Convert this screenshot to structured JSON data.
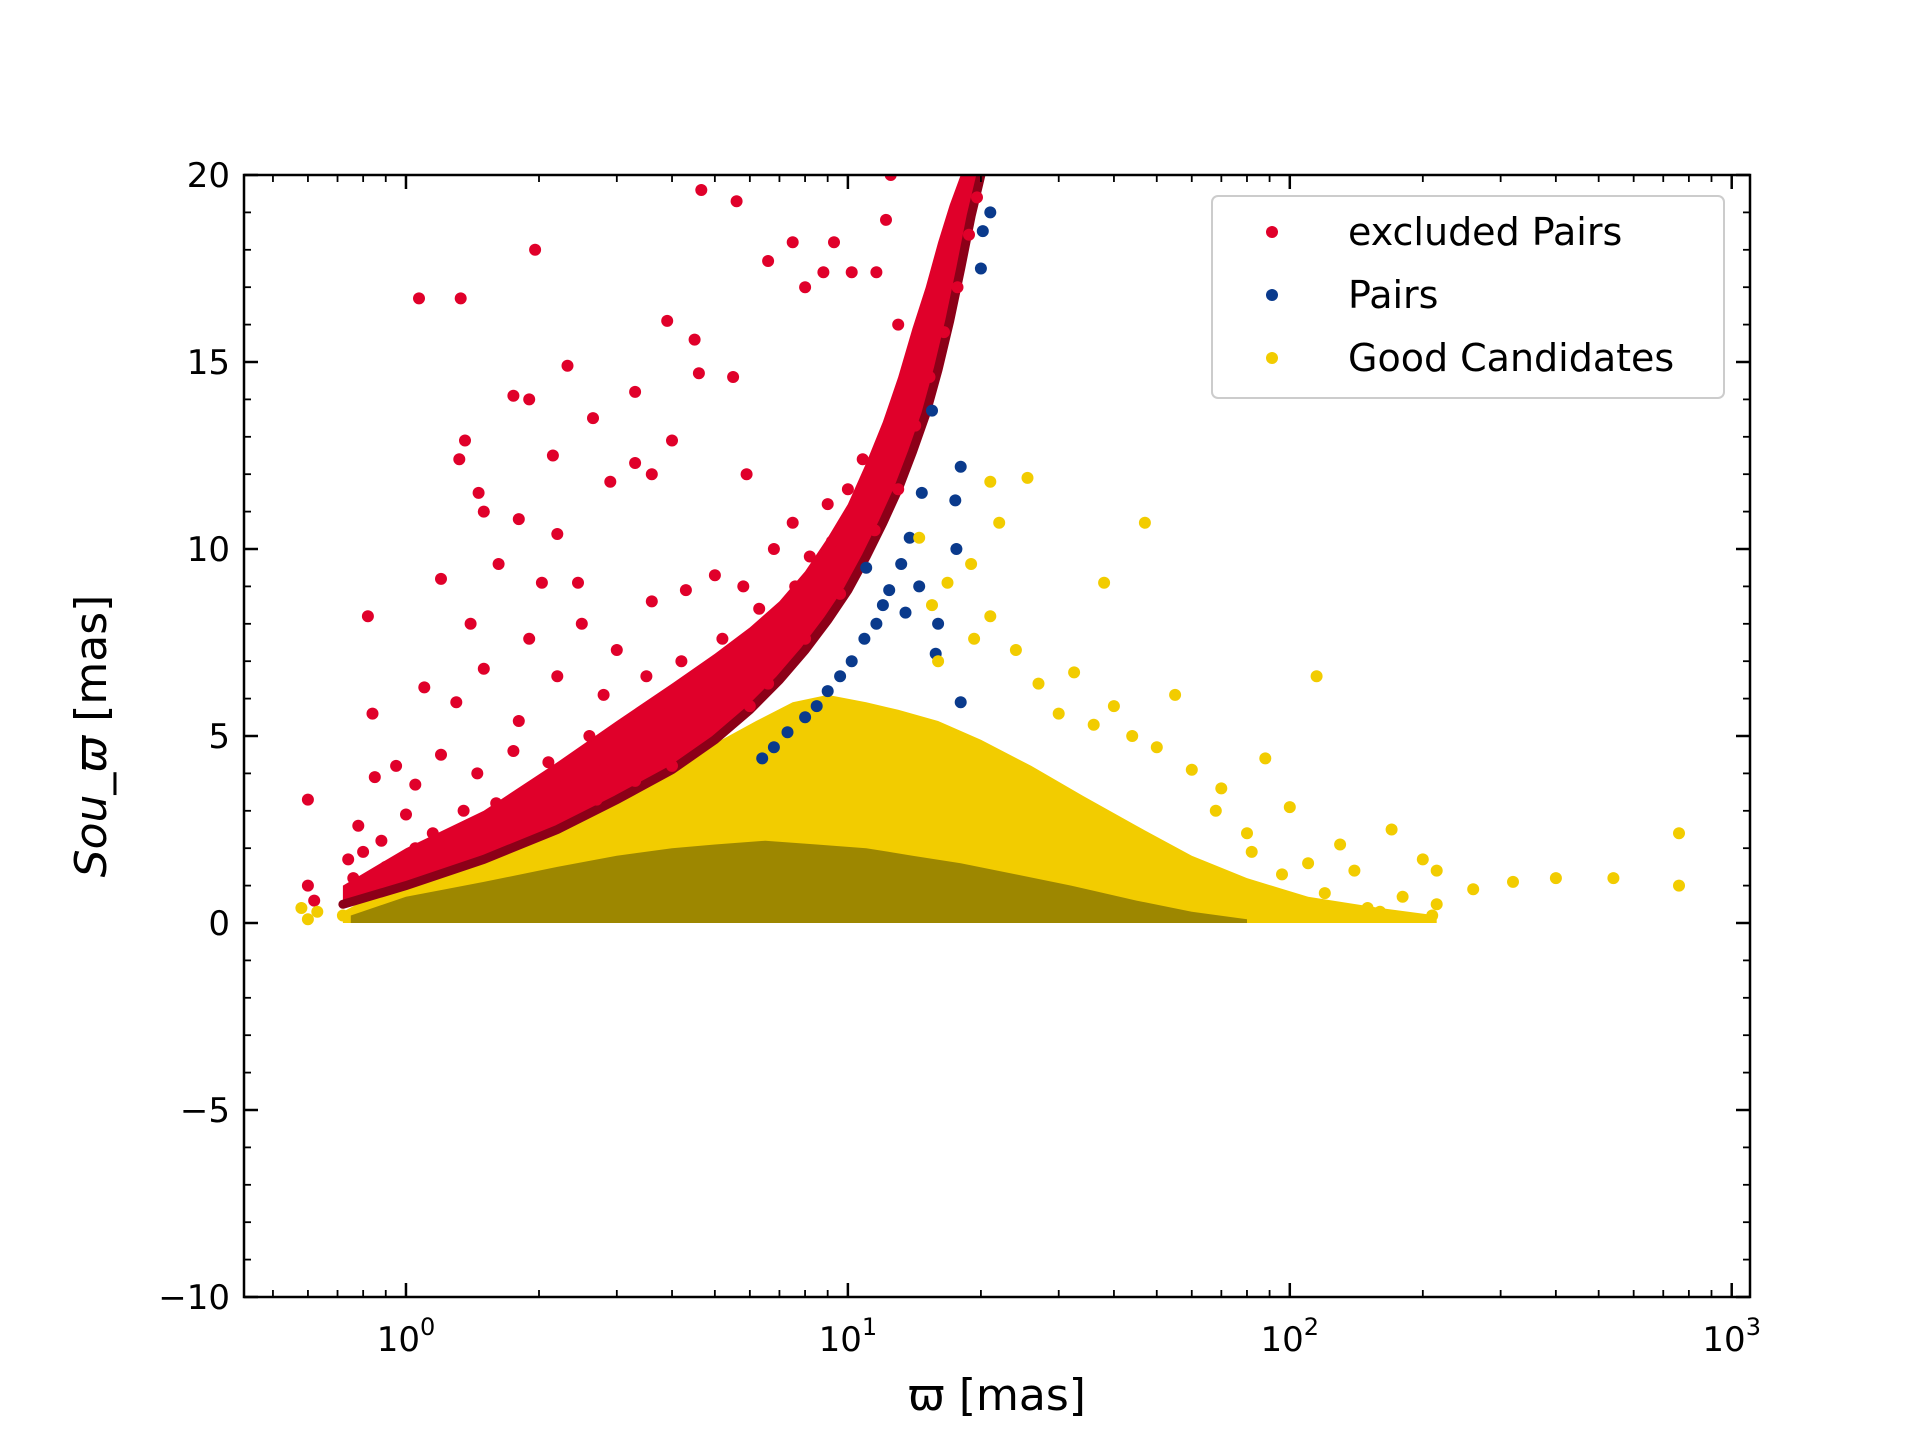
{
  "chart_data": {
    "type": "scatter",
    "title": "",
    "xlabel": "ϖ [mas]",
    "ylabel_italic": "Sou_ϖ",
    "ylabel_unit": " [mas]",
    "xscale": "log",
    "xlim": [
      0.43,
      1100
    ],
    "ylim": [
      -10,
      20
    ],
    "yticks": [
      -10,
      -5,
      0,
      5,
      10,
      15,
      20
    ],
    "ytick_labels": [
      "−10",
      "−5",
      "0",
      "5",
      "10",
      "15",
      "20"
    ],
    "xticks": [
      1,
      10,
      100,
      1000
    ],
    "xtick_bases": [
      "10",
      "10",
      "10",
      "10"
    ],
    "xtick_exponents": [
      "0",
      "1",
      "2",
      "3"
    ],
    "grid": false,
    "legend_position": "top-right",
    "series": [
      {
        "name": "excluded Pairs",
        "color": "#e0002a",
        "points": [
          [
            0.6,
            3.3
          ],
          [
            0.6,
            1.0
          ],
          [
            0.62,
            0.6
          ],
          [
            0.82,
            8.2
          ],
          [
            0.84,
            5.6
          ],
          [
            0.85,
            3.9
          ],
          [
            1.07,
            16.7
          ],
          [
            1.33,
            16.7
          ],
          [
            1.36,
            12.9
          ],
          [
            1.32,
            12.4
          ],
          [
            1.46,
            11.5
          ],
          [
            1.5,
            11.0
          ],
          [
            1.96,
            18.0
          ],
          [
            1.75,
            14.1
          ],
          [
            1.9,
            14.0
          ],
          [
            2.15,
            12.5
          ],
          [
            2.32,
            14.9
          ],
          [
            2.65,
            13.5
          ],
          [
            3.3,
            14.2
          ],
          [
            3.9,
            16.1
          ],
          [
            4.5,
            15.6
          ],
          [
            4.6,
            14.7
          ],
          [
            5.5,
            14.6
          ],
          [
            4.0,
            12.9
          ],
          [
            4.66,
            19.6
          ],
          [
            5.6,
            19.3
          ],
          [
            7.5,
            18.2
          ],
          [
            6.6,
            17.7
          ],
          [
            9.3,
            18.2
          ],
          [
            12.2,
            18.8
          ],
          [
            12.5,
            20.0
          ],
          [
            11.6,
            17.4
          ],
          [
            8.8,
            17.4
          ],
          [
            8.0,
            17.0
          ],
          [
            10.2,
            17.4
          ],
          [
            13.0,
            16.0
          ],
          [
            1.8,
            10.8
          ],
          [
            2.2,
            10.4
          ],
          [
            1.62,
            9.6
          ],
          [
            2.03,
            9.1
          ],
          [
            2.45,
            9.1
          ],
          [
            3.3,
            12.3
          ],
          [
            2.9,
            11.8
          ],
          [
            3.6,
            12.0
          ],
          [
            5.9,
            12.0
          ],
          [
            1.2,
            9.2
          ],
          [
            1.4,
            8.0
          ],
          [
            1.9,
            7.6
          ],
          [
            2.5,
            8.0
          ],
          [
            3.0,
            7.3
          ],
          [
            3.6,
            8.6
          ],
          [
            4.3,
            8.9
          ],
          [
            5.0,
            9.3
          ],
          [
            5.8,
            9.0
          ],
          [
            6.8,
            10.0
          ],
          [
            7.5,
            10.7
          ],
          [
            8.2,
            9.8
          ],
          [
            9.0,
            11.2
          ],
          [
            10.0,
            11.6
          ],
          [
            10.8,
            12.4
          ],
          [
            1.1,
            6.3
          ],
          [
            1.3,
            5.9
          ],
          [
            1.5,
            6.8
          ],
          [
            1.8,
            5.4
          ],
          [
            2.2,
            6.6
          ],
          [
            2.8,
            6.1
          ],
          [
            3.5,
            6.6
          ],
          [
            4.2,
            7.0
          ],
          [
            5.2,
            7.6
          ],
          [
            6.3,
            8.4
          ],
          [
            7.6,
            9.0
          ],
          [
            9.2,
            10.2
          ],
          [
            0.95,
            4.2
          ],
          [
            1.05,
            3.7
          ],
          [
            1.2,
            4.5
          ],
          [
            1.45,
            4.0
          ],
          [
            1.75,
            4.6
          ],
          [
            2.1,
            4.3
          ],
          [
            2.6,
            5.0
          ],
          [
            3.2,
            5.3
          ],
          [
            3.9,
            5.6
          ],
          [
            4.8,
            6.2
          ],
          [
            5.9,
            6.9
          ],
          [
            7.2,
            7.8
          ],
          [
            0.78,
            2.6
          ],
          [
            0.88,
            2.2
          ],
          [
            1.0,
            2.9
          ],
          [
            1.15,
            2.4
          ],
          [
            1.35,
            3.0
          ],
          [
            1.6,
            3.2
          ],
          [
            1.9,
            3.5
          ],
          [
            2.3,
            3.7
          ],
          [
            2.8,
            4.1
          ],
          [
            3.4,
            4.5
          ],
          [
            4.1,
            5.0
          ],
          [
            5.0,
            5.6
          ],
          [
            0.74,
            1.7
          ],
          [
            0.76,
            1.2
          ],
          [
            0.8,
            1.9
          ],
          [
            0.9,
            1.5
          ],
          [
            1.05,
            2.0
          ],
          [
            1.25,
            2.1
          ],
          [
            1.5,
            2.4
          ],
          [
            1.8,
            2.6
          ],
          [
            2.2,
            3.0
          ],
          [
            2.7,
            3.3
          ],
          [
            3.3,
            3.8
          ],
          [
            4.0,
            4.2
          ],
          [
            6.0,
            5.8
          ],
          [
            6.6,
            6.4
          ],
          [
            8.0,
            7.6
          ],
          [
            9.6,
            8.8
          ],
          [
            11.5,
            10.5
          ],
          [
            13.0,
            11.6
          ],
          [
            14.2,
            13.3
          ],
          [
            15.3,
            14.6
          ],
          [
            16.5,
            15.8
          ],
          [
            17.7,
            17.0
          ],
          [
            18.8,
            18.4
          ],
          [
            19.6,
            19.4
          ]
        ]
      },
      {
        "name": "Pairs",
        "color": "#0a3a8c",
        "points": [
          [
            21.0,
            19.0
          ],
          [
            20.2,
            18.5
          ],
          [
            20.0,
            17.5
          ],
          [
            18.0,
            12.2
          ],
          [
            17.5,
            11.3
          ],
          [
            17.6,
            10.0
          ],
          [
            15.5,
            13.7
          ],
          [
            14.7,
            11.5
          ],
          [
            13.8,
            10.3
          ],
          [
            13.2,
            9.6
          ],
          [
            12.4,
            8.9
          ],
          [
            11.6,
            8.0
          ],
          [
            10.9,
            7.6
          ],
          [
            10.2,
            7.0
          ],
          [
            9.6,
            6.6
          ],
          [
            9.0,
            6.2
          ],
          [
            8.5,
            5.8
          ],
          [
            8.0,
            5.5
          ],
          [
            7.3,
            5.1
          ],
          [
            6.8,
            4.7
          ],
          [
            6.4,
            4.4
          ],
          [
            15.8,
            7.2
          ],
          [
            18.0,
            5.9
          ],
          [
            13.5,
            8.3
          ],
          [
            14.5,
            9.0
          ],
          [
            16.0,
            8.0
          ],
          [
            12.0,
            8.5
          ],
          [
            11.0,
            9.5
          ]
        ]
      },
      {
        "name": "Good Candidates",
        "color": "#f2cc00",
        "density_color": "#8e7a00",
        "points": [
          [
            25.5,
            11.9
          ],
          [
            22.0,
            10.7
          ],
          [
            21.0,
            11.8
          ],
          [
            47.0,
            10.7
          ],
          [
            38.0,
            9.1
          ],
          [
            14.5,
            10.3
          ],
          [
            15.5,
            8.5
          ],
          [
            16.8,
            9.1
          ],
          [
            19.0,
            9.6
          ],
          [
            16.0,
            7.0
          ],
          [
            19.3,
            7.6
          ],
          [
            21.0,
            8.2
          ],
          [
            24.0,
            7.3
          ],
          [
            27.0,
            6.4
          ],
          [
            32.5,
            6.7
          ],
          [
            40.0,
            5.8
          ],
          [
            55.0,
            6.1
          ],
          [
            115.0,
            6.6
          ],
          [
            30.0,
            5.6
          ],
          [
            36.0,
            5.3
          ],
          [
            44.0,
            5.0
          ],
          [
            50.0,
            4.7
          ],
          [
            60.0,
            4.1
          ],
          [
            70.0,
            3.6
          ],
          [
            88.0,
            4.4
          ],
          [
            68.0,
            3.0
          ],
          [
            80.0,
            2.4
          ],
          [
            100.0,
            3.1
          ],
          [
            130.0,
            2.1
          ],
          [
            170.0,
            2.5
          ],
          [
            200.0,
            1.7
          ],
          [
            215.0,
            1.4
          ],
          [
            260.0,
            0.9
          ],
          [
            320.0,
            1.1
          ],
          [
            400.0,
            1.2
          ],
          [
            540.0,
            1.2
          ],
          [
            760.0,
            2.4
          ],
          [
            760.0,
            1.0
          ],
          [
            210.0,
            0.2
          ],
          [
            215.0,
            0.5
          ],
          [
            180.0,
            0.7
          ],
          [
            150.0,
            0.4
          ],
          [
            120.0,
            0.8
          ],
          [
            96.0,
            1.3
          ],
          [
            82.0,
            1.9
          ],
          [
            110.0,
            1.6
          ],
          [
            140.0,
            1.4
          ],
          [
            160.0,
            0.3
          ],
          [
            0.58,
            0.4
          ],
          [
            0.6,
            0.1
          ],
          [
            0.63,
            0.3
          ],
          [
            0.72,
            0.2
          ]
        ]
      }
    ],
    "density_region": {
      "series": "Good Candidates",
      "upper_edge": [
        [
          0.72,
          0.3
        ],
        [
          1.0,
          1.2
        ],
        [
          1.5,
          1.9
        ],
        [
          2.2,
          2.7
        ],
        [
          3.0,
          3.4
        ],
        [
          4.0,
          4.2
        ],
        [
          5.0,
          4.8
        ],
        [
          6.2,
          5.4
        ],
        [
          7.5,
          5.9
        ],
        [
          9.0,
          6.1
        ],
        [
          11.0,
          5.9
        ],
        [
          13.0,
          5.7
        ],
        [
          16.0,
          5.4
        ],
        [
          20.0,
          4.9
        ],
        [
          26.0,
          4.2
        ],
        [
          34.0,
          3.4
        ],
        [
          45.0,
          2.6
        ],
        [
          60.0,
          1.8
        ],
        [
          80.0,
          1.2
        ],
        [
          110.0,
          0.7
        ],
        [
          160.0,
          0.4
        ],
        [
          215.0,
          0.2
        ]
      ],
      "core_edge": [
        [
          0.75,
          0.2
        ],
        [
          1.0,
          0.7
        ],
        [
          1.5,
          1.1
        ],
        [
          2.2,
          1.5
        ],
        [
          3.0,
          1.8
        ],
        [
          4.0,
          2.0
        ],
        [
          5.0,
          2.1
        ],
        [
          6.5,
          2.2
        ],
        [
          8.5,
          2.1
        ],
        [
          11.0,
          2.0
        ],
        [
          14.0,
          1.8
        ],
        [
          18.0,
          1.6
        ],
        [
          24.0,
          1.3
        ],
        [
          32.0,
          1.0
        ],
        [
          45.0,
          0.6
        ],
        [
          60.0,
          0.3
        ],
        [
          80.0,
          0.1
        ]
      ]
    },
    "excluded_band": {
      "series": "excluded Pairs",
      "edge": [
        [
          0.72,
          0.5
        ],
        [
          1.0,
          1.0
        ],
        [
          1.5,
          1.7
        ],
        [
          2.2,
          2.5
        ],
        [
          3.0,
          3.3
        ],
        [
          4.0,
          4.1
        ],
        [
          5.0,
          4.9
        ],
        [
          6.0,
          5.7
        ],
        [
          7.0,
          6.5
        ],
        [
          8.0,
          7.3
        ],
        [
          9.0,
          8.1
        ],
        [
          10.0,
          8.9
        ],
        [
          11.0,
          9.8
        ],
        [
          12.0,
          10.7
        ],
        [
          13.0,
          11.6
        ],
        [
          14.0,
          12.6
        ],
        [
          15.0,
          13.6
        ],
        [
          16.0,
          14.8
        ],
        [
          17.0,
          16.1
        ],
        [
          18.0,
          17.5
        ],
        [
          19.0,
          18.9
        ],
        [
          20.0,
          20.0
        ]
      ],
      "upper_edge": [
        [
          0.72,
          1.0
        ],
        [
          1.0,
          2.0
        ],
        [
          1.5,
          3.0
        ],
        [
          2.2,
          4.3
        ],
        [
          3.0,
          5.4
        ],
        [
          4.0,
          6.4
        ],
        [
          5.0,
          7.2
        ],
        [
          6.0,
          7.9
        ],
        [
          7.0,
          8.6
        ],
        [
          8.0,
          9.4
        ],
        [
          9.0,
          10.3
        ],
        [
          10.0,
          11.2
        ],
        [
          11.0,
          12.3
        ],
        [
          12.0,
          13.4
        ],
        [
          13.0,
          14.6
        ],
        [
          14.0,
          15.9
        ],
        [
          15.0,
          17.0
        ],
        [
          16.0,
          18.2
        ],
        [
          17.0,
          19.2
        ],
        [
          18.0,
          20.0
        ]
      ]
    }
  }
}
